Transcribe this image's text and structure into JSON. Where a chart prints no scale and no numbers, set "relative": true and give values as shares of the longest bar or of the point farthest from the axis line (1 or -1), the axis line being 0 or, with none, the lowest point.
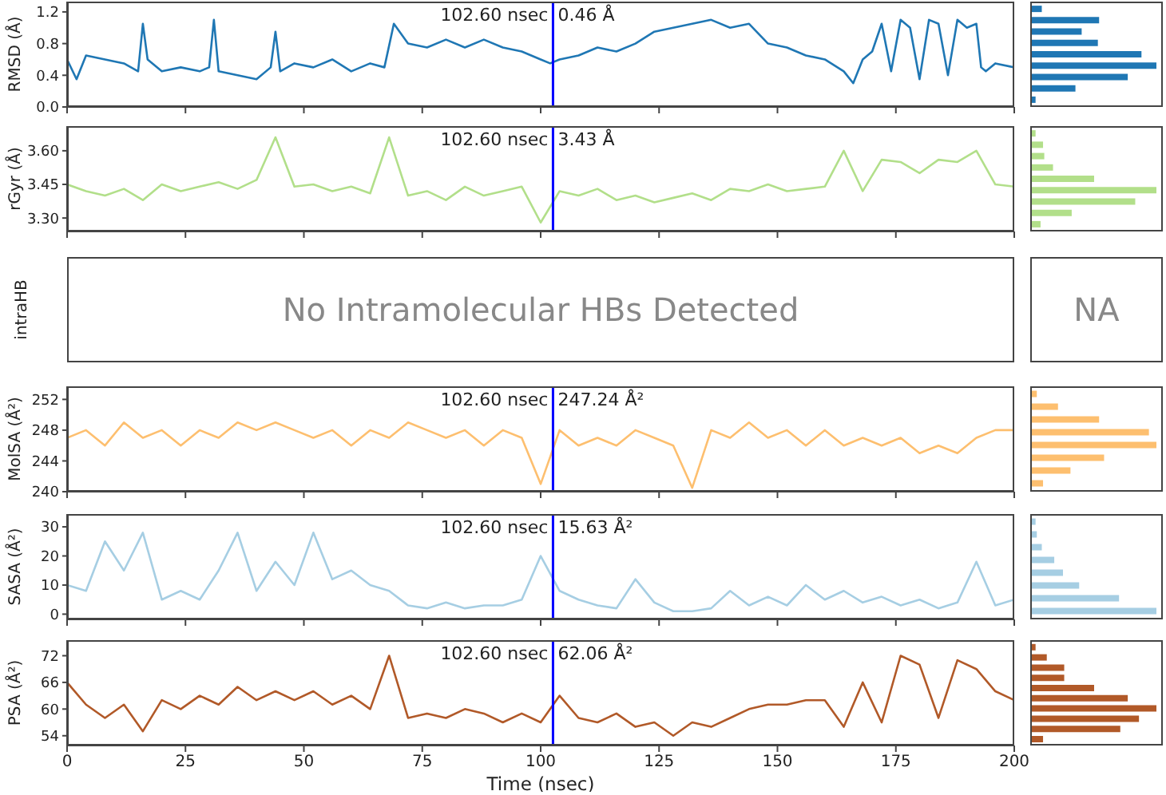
{
  "chart_data": [
    {
      "type": "line",
      "ylabel": "RMSD (Å)",
      "color": "#1f77b4",
      "tick_labels": "y",
      "xlim": [
        0,
        200
      ],
      "xticks": [
        0,
        25,
        50,
        75,
        100,
        125,
        150,
        175,
        200
      ],
      "ylim": [
        0,
        1.33
      ],
      "yticks": [
        {
          "value": 0,
          "label": "0.0"
        },
        0.4,
        0.8,
        1.2
      ],
      "x": [
        0,
        2,
        4,
        8,
        12,
        15,
        16,
        17,
        20,
        24,
        28,
        30,
        31,
        32,
        36,
        40,
        43,
        44,
        45,
        48,
        52,
        56,
        60,
        64,
        67,
        69,
        72,
        76,
        80,
        84,
        88,
        92,
        96,
        100,
        102,
        104,
        108,
        112,
        116,
        120,
        124,
        128,
        132,
        136,
        140,
        144,
        148,
        152,
        156,
        160,
        164,
        166,
        168,
        170,
        172,
        174,
        176,
        178,
        180,
        182,
        184,
        186,
        188,
        190,
        192,
        193,
        194,
        196,
        200
      ],
      "values": [
        0.6,
        0.35,
        0.65,
        0.6,
        0.55,
        0.45,
        1.05,
        0.6,
        0.45,
        0.5,
        0.45,
        0.5,
        1.1,
        0.45,
        0.4,
        0.35,
        0.5,
        0.95,
        0.45,
        0.55,
        0.5,
        0.6,
        0.45,
        0.55,
        0.5,
        1.05,
        0.8,
        0.75,
        0.85,
        0.75,
        0.85,
        0.75,
        0.7,
        0.6,
        0.55,
        0.6,
        0.65,
        0.75,
        0.7,
        0.8,
        0.95,
        1.0,
        1.05,
        1.1,
        1.0,
        1.05,
        0.8,
        0.75,
        0.65,
        0.6,
        0.45,
        0.3,
        0.6,
        0.7,
        1.05,
        0.45,
        1.1,
        1.0,
        0.35,
        1.1,
        1.05,
        0.4,
        1.1,
        1.0,
        1.05,
        0.5,
        0.45,
        0.55,
        0.5
      ],
      "ref_lines": [
        {
          "axis": "x",
          "value": 102.6,
          "label": "102.60 nsec",
          "color": "#0000ff"
        }
      ],
      "annotations": [
        "0.46 Å"
      ]
    },
    {
      "type": "bar",
      "orientation": "horizontal",
      "relative": true,
      "tick_labels": false,
      "color": "#1f77b4",
      "categories": [
        null,
        null,
        null,
        null,
        null,
        null,
        null,
        null,
        null
      ],
      "values": [
        0.08,
        0.54,
        0.4,
        0.53,
        0.88,
        1.0,
        0.77,
        0.35,
        0.03
      ]
    },
    {
      "type": "line",
      "ylabel": "rGyr (Å)",
      "color": "#b2df8a",
      "tick_labels": "y",
      "xlim": [
        0,
        200
      ],
      "xticks": [
        0,
        25,
        50,
        75,
        100,
        125,
        150,
        175,
        200
      ],
      "ylim": [
        3.24,
        3.71
      ],
      "yticks": [
        {
          "value": 3.3,
          "label": "3.30"
        },
        3.45,
        {
          "value": 3.6,
          "label": "3.60"
        }
      ],
      "x": [
        0,
        4,
        8,
        12,
        16,
        20,
        24,
        28,
        32,
        36,
        40,
        44,
        48,
        52,
        56,
        60,
        64,
        68,
        72,
        76,
        80,
        84,
        88,
        92,
        96,
        100,
        104,
        108,
        112,
        116,
        120,
        124,
        128,
        132,
        136,
        140,
        144,
        148,
        152,
        156,
        160,
        164,
        168,
        172,
        176,
        180,
        184,
        188,
        192,
        196,
        200
      ],
      "values": [
        3.45,
        3.42,
        3.4,
        3.43,
        3.38,
        3.45,
        3.42,
        3.44,
        3.46,
        3.43,
        3.47,
        3.66,
        3.44,
        3.45,
        3.42,
        3.44,
        3.41,
        3.66,
        3.4,
        3.42,
        3.38,
        3.44,
        3.4,
        3.42,
        3.44,
        3.28,
        3.42,
        3.4,
        3.43,
        3.38,
        3.4,
        3.37,
        3.39,
        3.41,
        3.38,
        3.43,
        3.42,
        3.45,
        3.42,
        3.43,
        3.44,
        3.6,
        3.42,
        3.56,
        3.55,
        3.5,
        3.56,
        3.55,
        3.6,
        3.45,
        3.44
      ],
      "ref_lines": [
        {
          "axis": "x",
          "value": 102.6,
          "label": "102.60 nsec",
          "color": "#0000ff"
        }
      ],
      "annotations": [
        "3.43 Å"
      ]
    },
    {
      "type": "bar",
      "orientation": "horizontal",
      "relative": true,
      "tick_labels": false,
      "color": "#b2df8a",
      "categories": [
        null,
        null,
        null,
        null,
        null,
        null,
        null,
        null,
        null
      ],
      "values": [
        0.03,
        0.09,
        0.1,
        0.17,
        0.5,
        1.0,
        0.83,
        0.32,
        0.07
      ]
    },
    {
      "type": "other",
      "ylabel": "intraHB",
      "annotations": [
        "No Intramolecular HBs Detected"
      ]
    },
    {
      "type": "other",
      "annotations": [
        "NA"
      ]
    },
    {
      "type": "line",
      "ylabel": "MolSA (Å²)",
      "color": "#fdbf6f",
      "tick_labels": "y",
      "xlim": [
        0,
        200
      ],
      "xticks": [
        0,
        25,
        50,
        75,
        100,
        125,
        150,
        175,
        200
      ],
      "ylim": [
        240,
        253.7
      ],
      "yticks": [
        240,
        244,
        248,
        252
      ],
      "x": [
        0,
        4,
        8,
        12,
        16,
        20,
        24,
        28,
        32,
        36,
        40,
        44,
        48,
        52,
        56,
        60,
        64,
        68,
        72,
        76,
        80,
        84,
        88,
        92,
        96,
        100,
        104,
        108,
        112,
        116,
        120,
        124,
        128,
        132,
        136,
        140,
        144,
        148,
        152,
        156,
        160,
        164,
        168,
        172,
        176,
        180,
        184,
        188,
        192,
        196,
        200
      ],
      "values": [
        247,
        248,
        246,
        249,
        247,
        248,
        246,
        248,
        247,
        249,
        248,
        249,
        248,
        247,
        248,
        246,
        248,
        247,
        249,
        248,
        247,
        248,
        246,
        248,
        247,
        241,
        248,
        246,
        247,
        246,
        248,
        247,
        246,
        240.5,
        248,
        247,
        249,
        247,
        248,
        246,
        248,
        246,
        247,
        246,
        247,
        245,
        246,
        245,
        247,
        248,
        248
      ],
      "ref_lines": [
        {
          "axis": "x",
          "value": 102.6,
          "label": "102.60 nsec",
          "color": "#0000ff"
        }
      ],
      "annotations": [
        "247.24 Å²"
      ]
    },
    {
      "type": "bar",
      "orientation": "horizontal",
      "relative": true,
      "tick_labels": false,
      "color": "#fdbf6f",
      "categories": [
        null,
        null,
        null,
        null,
        null,
        null,
        null,
        null
      ],
      "values": [
        0.04,
        0.21,
        0.54,
        0.94,
        1.0,
        0.58,
        0.31,
        0.09
      ]
    },
    {
      "type": "line",
      "ylabel": "SASA (Å²)",
      "color": "#a6cee3",
      "tick_labels": "y",
      "xlim": [
        0,
        200
      ],
      "xticks": [
        0,
        25,
        50,
        75,
        100,
        125,
        150,
        175,
        200
      ],
      "ylim": [
        -1.8,
        34.4
      ],
      "yticks": [
        0,
        10,
        20,
        30
      ],
      "x": [
        0,
        4,
        8,
        12,
        16,
        20,
        24,
        28,
        32,
        36,
        40,
        44,
        48,
        52,
        56,
        60,
        64,
        68,
        72,
        76,
        80,
        84,
        88,
        92,
        96,
        100,
        104,
        108,
        112,
        116,
        120,
        124,
        128,
        132,
        136,
        140,
        144,
        148,
        152,
        156,
        160,
        164,
        168,
        172,
        176,
        180,
        184,
        188,
        192,
        196,
        200
      ],
      "values": [
        10,
        8,
        25,
        15,
        28,
        5,
        8,
        5,
        15,
        28,
        8,
        18,
        10,
        28,
        12,
        15,
        10,
        8,
        3,
        2,
        4,
        2,
        3,
        3,
        5,
        20,
        8,
        5,
        3,
        2,
        12,
        4,
        1,
        1,
        2,
        8,
        3,
        6,
        3,
        10,
        5,
        8,
        4,
        6,
        3,
        5,
        2,
        4,
        18,
        3,
        5
      ],
      "ref_lines": [
        {
          "axis": "x",
          "value": 102.6,
          "label": "102.60 nsec",
          "color": "#0000ff"
        }
      ],
      "annotations": [
        "15.63 Å²"
      ]
    },
    {
      "type": "bar",
      "orientation": "horizontal",
      "relative": true,
      "tick_labels": false,
      "color": "#a6cee3",
      "categories": [
        null,
        null,
        null,
        null,
        null,
        null,
        null,
        null
      ],
      "values": [
        0.03,
        0.04,
        0.08,
        0.18,
        0.25,
        0.38,
        0.7,
        1.0
      ]
    },
    {
      "type": "line",
      "ylabel": "PSA (Å²)",
      "xlabel": "Time (nsec)",
      "color": "#b15928",
      "xlim": [
        0,
        200
      ],
      "xticks": [
        0,
        25,
        50,
        75,
        100,
        125,
        150,
        175,
        200
      ],
      "ylim": [
        51.8,
        75.5
      ],
      "yticks": [
        54,
        60,
        66,
        72
      ],
      "x": [
        0,
        4,
        8,
        12,
        16,
        20,
        24,
        28,
        32,
        36,
        40,
        44,
        48,
        52,
        56,
        60,
        64,
        68,
        72,
        76,
        80,
        84,
        88,
        92,
        96,
        100,
        104,
        108,
        112,
        116,
        120,
        124,
        128,
        132,
        136,
        140,
        144,
        148,
        152,
        156,
        160,
        164,
        168,
        172,
        176,
        180,
        184,
        188,
        192,
        196,
        200
      ],
      "values": [
        66,
        61,
        58,
        61,
        55,
        62,
        60,
        63,
        61,
        65,
        62,
        64,
        62,
        64,
        61,
        63,
        60,
        72,
        58,
        59,
        58,
        60,
        59,
        57,
        59,
        57,
        63,
        58,
        57,
        59,
        56,
        57,
        54,
        57,
        56,
        58,
        60,
        61,
        61,
        62,
        62,
        56,
        66,
        57,
        72,
        70,
        58,
        71,
        69,
        64,
        62
      ],
      "ref_lines": [
        {
          "axis": "x",
          "value": 102.6,
          "label": "102.60 nsec",
          "color": "#0000ff"
        }
      ],
      "annotations": [
        "62.06 Å²"
      ]
    },
    {
      "type": "bar",
      "orientation": "horizontal",
      "relative": true,
      "tick_labels": false,
      "color": "#b15928",
      "categories": [
        null,
        null,
        null,
        null,
        null,
        null,
        null,
        null,
        null,
        null
      ],
      "values": [
        0.03,
        0.12,
        0.26,
        0.26,
        0.5,
        0.77,
        1.0,
        0.86,
        0.71,
        0.09
      ]
    }
  ]
}
